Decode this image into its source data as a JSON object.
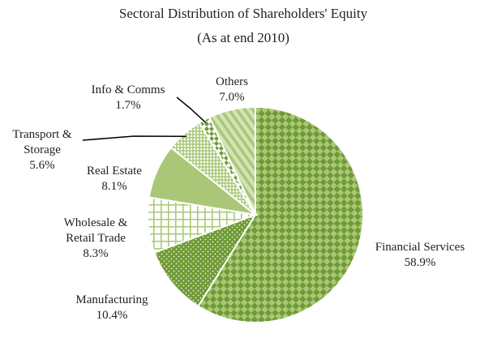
{
  "colors": {
    "dark_green": "#6f9a35",
    "light_green": "#a9c777",
    "pale_green": "#d3e3b6",
    "border": "#ffffff",
    "leader": "#000000"
  },
  "chart_data": {
    "type": "pie",
    "title": "Sectoral Distribution of Shareholders' Equity",
    "subtitle": "(As at end 2010)",
    "legend": "none",
    "slices": [
      {
        "label": [
          "Financial Services"
        ],
        "value": 58.9,
        "value_text": "58.9%",
        "pattern": "diamond-check"
      },
      {
        "label": [
          "Manufacturing"
        ],
        "value": 10.4,
        "value_text": "10.4%",
        "pattern": "dots"
      },
      {
        "label": [
          "Wholesale &",
          "Retail Trade"
        ],
        "value": 8.3,
        "value_text": "8.3%",
        "pattern": "grid"
      },
      {
        "label": [
          "Real Estate"
        ],
        "value": 8.1,
        "value_text": "8.1%",
        "pattern": "solid"
      },
      {
        "label": [
          "Transport &",
          "Storage"
        ],
        "value": 5.6,
        "value_text": "5.6%",
        "pattern": "small-check"
      },
      {
        "label": [
          "Info & Comms"
        ],
        "value": 1.7,
        "value_text": "1.7%",
        "pattern": "zigzag"
      },
      {
        "label": [
          "Others"
        ],
        "value": 7.0,
        "value_text": "7.0%",
        "pattern": "diagonal-stripes"
      }
    ]
  }
}
